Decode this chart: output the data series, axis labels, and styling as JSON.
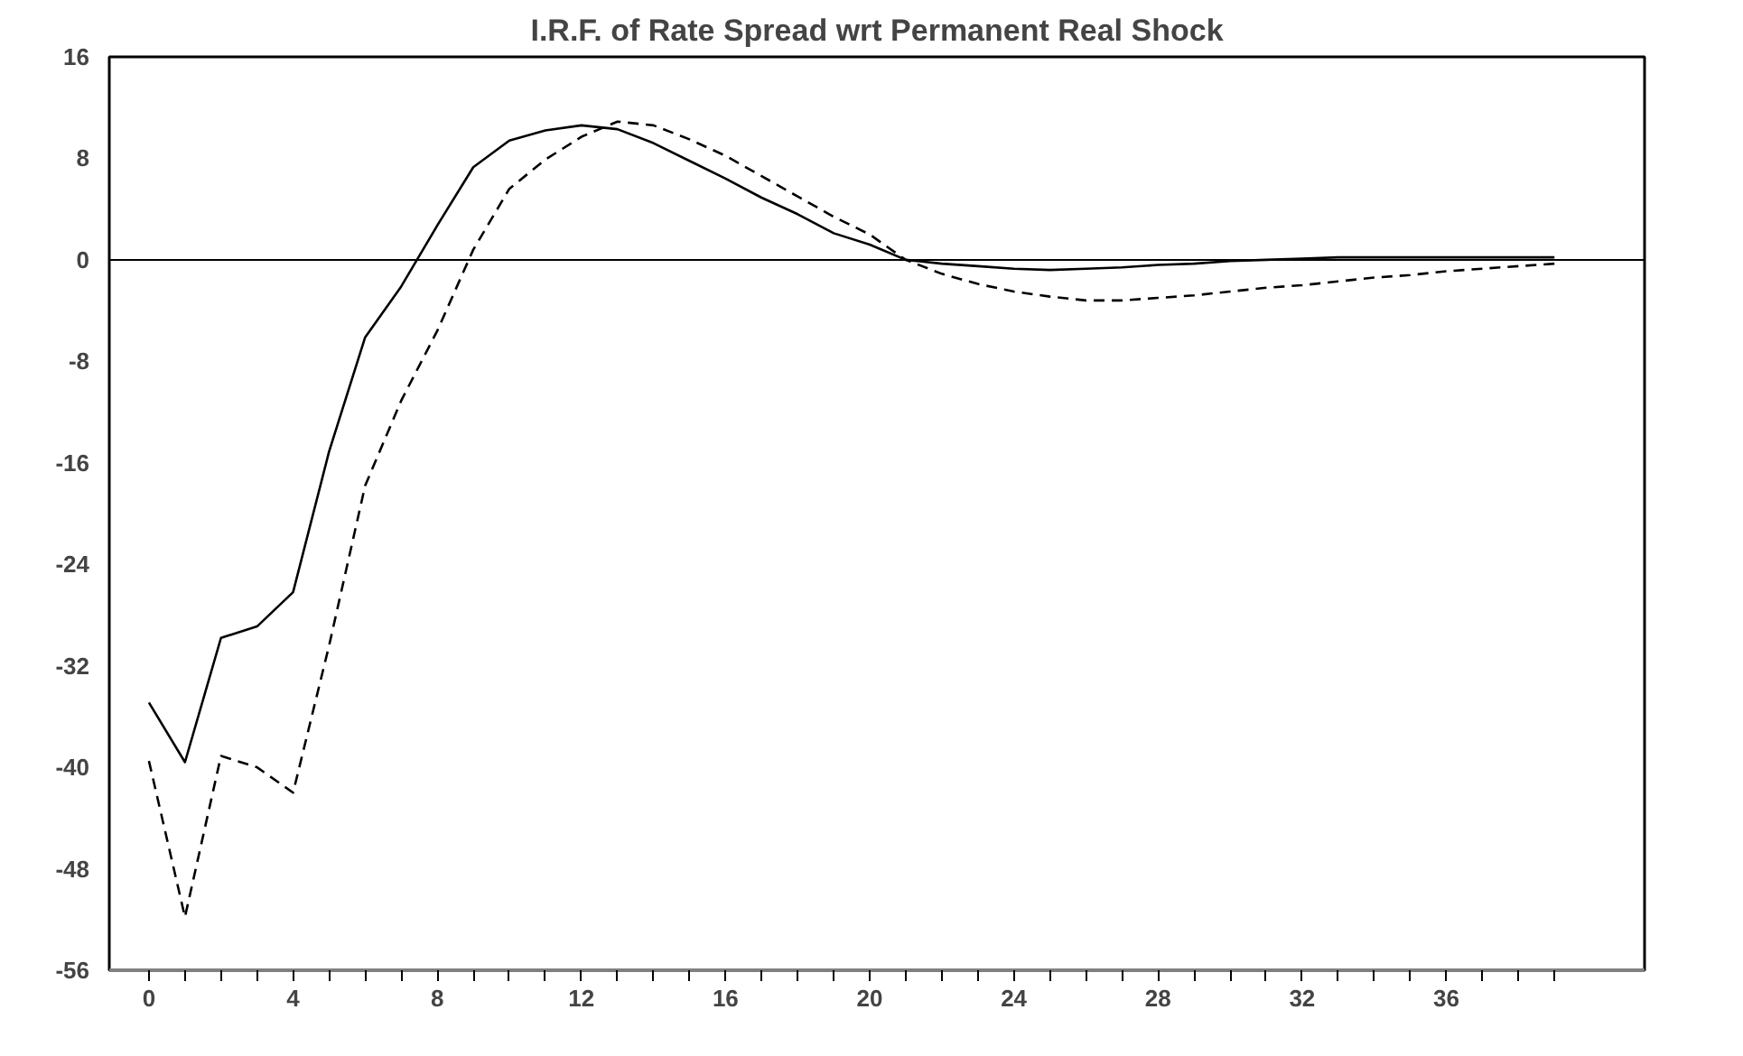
{
  "chart_data": {
    "type": "line",
    "title": "I.R.F. of Rate Spread wrt Permanent Real Shock",
    "x": [
      0,
      1,
      2,
      3,
      4,
      5,
      6,
      7,
      8,
      9,
      10,
      11,
      12,
      13,
      14,
      15,
      16,
      17,
      18,
      19,
      20,
      21,
      22,
      23,
      24,
      25,
      26,
      27,
      28,
      29,
      30,
      31,
      32,
      33,
      34,
      35,
      36,
      37,
      38,
      39
    ],
    "series": [
      {
        "color": "#000000",
        "line_style": "solid",
        "values": [
          -34.9,
          -39.6,
          -29.8,
          -28.9,
          -26.2,
          -15.1,
          -6.1,
          -2.1,
          2.7,
          7.3,
          9.4,
          10.2,
          10.6,
          10.3,
          9.2,
          7.8,
          6.4,
          4.9,
          3.6,
          2.1,
          1.2,
          0,
          -0.3,
          -0.5,
          -0.7,
          -0.8,
          -0.7,
          -0.6,
          -0.4,
          -0.3,
          -0.1,
          0,
          0.1,
          0.2,
          0.2,
          0.2,
          0.2,
          0.2,
          0.2,
          0.2
        ]
      },
      {
        "color": "#000000",
        "line_style": "dashed",
        "values": [
          -39.5,
          -51.8,
          -39.1,
          -40.0,
          -42.0,
          -30.4,
          -17.8,
          -11.1,
          -5.6,
          0.8,
          5.6,
          7.9,
          9.7,
          10.9,
          10.6,
          9.5,
          8.2,
          6.6,
          5.0,
          3.4,
          2.0,
          0,
          -1.1,
          -1.9,
          -2.5,
          -2.9,
          -3.2,
          -3.2,
          -3.0,
          -2.8,
          -2.5,
          -2.2,
          -2.0,
          -1.7,
          -1.4,
          -1.2,
          -0.9,
          -0.7,
          -0.5,
          -0.3
        ]
      }
    ],
    "xlim": [
      -1.1,
      41.5
    ],
    "ylim": [
      -56,
      16
    ],
    "xticks": [
      0,
      {
        "value": 1,
        "label": null
      },
      {
        "value": 2,
        "label": null
      },
      {
        "value": 3,
        "label": null
      },
      4,
      {
        "value": 5,
        "label": null
      },
      {
        "value": 6,
        "label": null
      },
      {
        "value": 7,
        "label": null
      },
      8,
      {
        "value": 9,
        "label": null
      },
      {
        "value": 10,
        "label": null
      },
      {
        "value": 11,
        "label": null
      },
      12,
      {
        "value": 13,
        "label": null
      },
      {
        "value": 14,
        "label": null
      },
      {
        "value": 15,
        "label": null
      },
      16,
      {
        "value": 17,
        "label": null
      },
      {
        "value": 18,
        "label": null
      },
      {
        "value": 19,
        "label": null
      },
      20,
      {
        "value": 21,
        "label": null
      },
      {
        "value": 22,
        "label": null
      },
      {
        "value": 23,
        "label": null
      },
      24,
      {
        "value": 25,
        "label": null
      },
      {
        "value": 26,
        "label": null
      },
      {
        "value": 27,
        "label": null
      },
      28,
      {
        "value": 29,
        "label": null
      },
      {
        "value": 30,
        "label": null
      },
      {
        "value": 31,
        "label": null
      },
      32,
      {
        "value": 33,
        "label": null
      },
      {
        "value": 34,
        "label": null
      },
      {
        "value": 35,
        "label": null
      },
      36,
      {
        "value": 37,
        "label": null
      },
      {
        "value": 38,
        "label": null
      },
      {
        "value": 39,
        "label": null
      }
    ],
    "yticks": [
      -56,
      -48,
      -40,
      -32,
      -24,
      -16,
      -8,
      0,
      8,
      16
    ],
    "ref_lines": [
      {
        "axis": "y",
        "value": 0,
        "color": "#000000"
      }
    ],
    "grid": false
  }
}
